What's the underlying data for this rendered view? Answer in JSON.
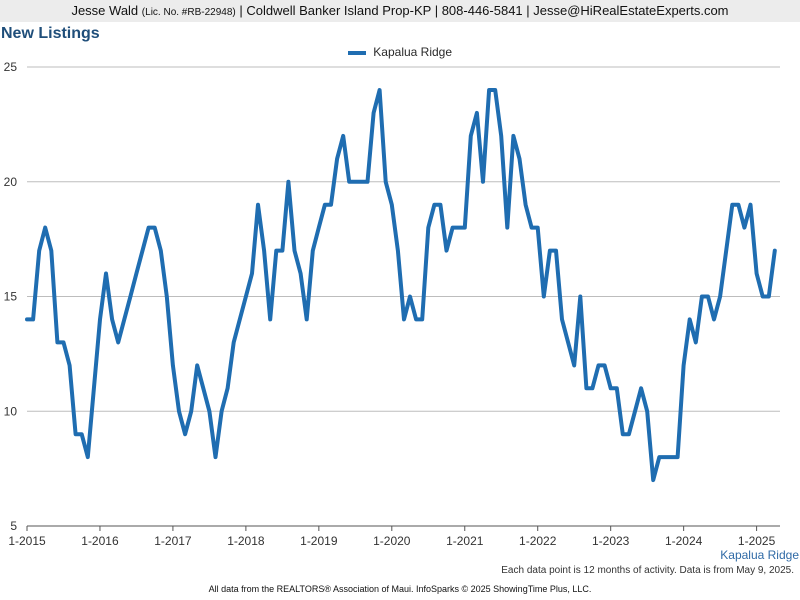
{
  "header": {
    "agent_name": "Jesse Wald",
    "license": "(Lic. No. #RB-22948)",
    "details": "| Coldwell Banker Island Prop-KP | 808-446-5841 | Jesse@HiRealEstateExperts.com"
  },
  "title": "New Listings",
  "footnote": "Each data point is 12 months of activity. Data is from May 9, 2025.",
  "footer": "All data from the REALTORS® Association of Maui. InfoSparks © 2025 ShowingTime Plus, LLC.",
  "series_label": "Kapalua Ridge",
  "colors": {
    "line": "#1f6db1",
    "grid": "#bdbdbd",
    "axis": "#555555",
    "header_bg": "#ececec",
    "title": "#1f4e7a"
  },
  "chart_data": {
    "type": "line",
    "xlabel": "",
    "ylabel": "",
    "ylim": [
      5,
      25
    ],
    "yticks": [
      5,
      10,
      15,
      20,
      25
    ],
    "grid": true,
    "legend_position": "top-center",
    "x_start": "2015-01",
    "x_tick_labels": [
      "1-2015",
      "1-2016",
      "1-2017",
      "1-2018",
      "1-2019",
      "1-2020",
      "1-2021",
      "1-2022",
      "1-2023",
      "1-2024",
      "1-2025"
    ],
    "series": [
      {
        "name": "Kapalua Ridge",
        "values": [
          14,
          14,
          17,
          18,
          17,
          13,
          13,
          12,
          9,
          9,
          8,
          11,
          14,
          16,
          14,
          13,
          14,
          15,
          16,
          17,
          18,
          18,
          17,
          15,
          12,
          10,
          9,
          10,
          12,
          11,
          10,
          8,
          10,
          11,
          13,
          14,
          15,
          16,
          19,
          17,
          14,
          17,
          17,
          20,
          17,
          16,
          14,
          17,
          18,
          19,
          19,
          21,
          22,
          20,
          20,
          20,
          20,
          23,
          24,
          20,
          19,
          17,
          14,
          15,
          14,
          14,
          18,
          19,
          19,
          17,
          18,
          18,
          18,
          22,
          23,
          20,
          24,
          24,
          22,
          18,
          22,
          21,
          19,
          18,
          18,
          15,
          17,
          17,
          14,
          13,
          12,
          15,
          11,
          11,
          12,
          12,
          11,
          11,
          9,
          9,
          10,
          11,
          10,
          7,
          8,
          8,
          8,
          8,
          12,
          14,
          13,
          15,
          15,
          14,
          15,
          17,
          19,
          19,
          18,
          19,
          16,
          15,
          15,
          17
        ]
      }
    ]
  }
}
